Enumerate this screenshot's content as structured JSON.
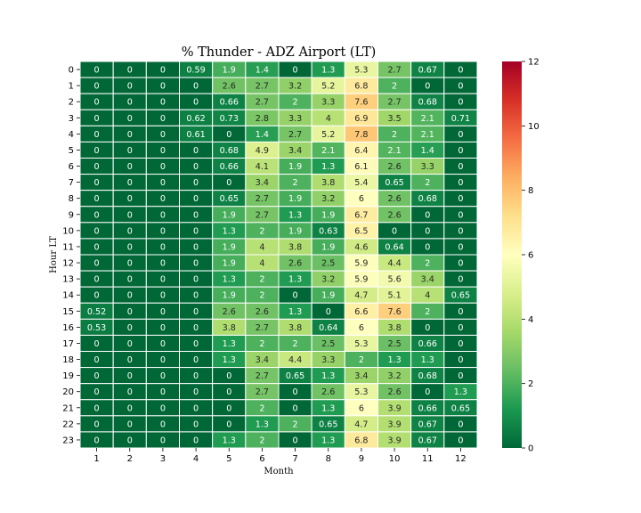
{
  "chart_data": {
    "type": "heatmap",
    "title": "% Thunder - ADZ Airport (LT)",
    "xlabel": "Month",
    "ylabel": "Hour LT",
    "x_categories": [
      "1",
      "2",
      "3",
      "4",
      "5",
      "6",
      "7",
      "8",
      "9",
      "10",
      "11",
      "12"
    ],
    "y_categories": [
      "0",
      "1",
      "2",
      "3",
      "4",
      "5",
      "6",
      "7",
      "8",
      "9",
      "10",
      "11",
      "12",
      "13",
      "14",
      "15",
      "16",
      "17",
      "18",
      "19",
      "20",
      "21",
      "22",
      "23"
    ],
    "values": [
      [
        0,
        0,
        0,
        0.59,
        1.9,
        1.4,
        0,
        1.3,
        5.3,
        2.7,
        0.67,
        0
      ],
      [
        0,
        0,
        0,
        0,
        2.6,
        2.7,
        3.2,
        5.2,
        6.8,
        2,
        0,
        0
      ],
      [
        0,
        0,
        0,
        0,
        0.66,
        2.7,
        2,
        3.3,
        7.6,
        2.7,
        0.68,
        0
      ],
      [
        0,
        0,
        0,
        0.62,
        0.73,
        2.8,
        3.3,
        4,
        6.9,
        3.5,
        2.1,
        0.71
      ],
      [
        0,
        0,
        0,
        0.61,
        0,
        1.4,
        2.7,
        5.2,
        7.8,
        2,
        2.1,
        0
      ],
      [
        0,
        0,
        0,
        0,
        0.68,
        4.9,
        3.4,
        2.1,
        6.4,
        2.1,
        1.4,
        0
      ],
      [
        0,
        0,
        0,
        0,
        0.66,
        4.1,
        1.9,
        1.3,
        6.1,
        2.6,
        3.3,
        0
      ],
      [
        0,
        0,
        0,
        0,
        0,
        3.4,
        2,
        3.8,
        5.4,
        0.65,
        2,
        0
      ],
      [
        0,
        0,
        0,
        0,
        0.65,
        2.7,
        1.9,
        3.2,
        6,
        2.6,
        0.68,
        0
      ],
      [
        0,
        0,
        0,
        0,
        1.9,
        2.7,
        1.3,
        1.9,
        6.7,
        2.6,
        0,
        0
      ],
      [
        0,
        0,
        0,
        0,
        1.3,
        2,
        1.9,
        0.63,
        6.5,
        0,
        0,
        0
      ],
      [
        0,
        0,
        0,
        0,
        1.9,
        4,
        3.8,
        1.9,
        4.6,
        0.64,
        0,
        0
      ],
      [
        0,
        0,
        0,
        0,
        1.9,
        4,
        2.6,
        2.5,
        5.9,
        4.4,
        2,
        0
      ],
      [
        0,
        0,
        0,
        0,
        1.3,
        2,
        1.3,
        3.2,
        5.9,
        5.6,
        3.4,
        0
      ],
      [
        0,
        0,
        0,
        0,
        1.9,
        2,
        0,
        1.9,
        4.7,
        5.1,
        4,
        0.65
      ],
      [
        0.52,
        0,
        0,
        0,
        2.6,
        2.6,
        1.3,
        0,
        6.6,
        7.6,
        2,
        0
      ],
      [
        0.53,
        0,
        0,
        0,
        3.8,
        2.7,
        3.8,
        0.64,
        6,
        3.8,
        0,
        0
      ],
      [
        0,
        0,
        0,
        0,
        1.3,
        2,
        2,
        2.5,
        5.3,
        2.5,
        0.66,
        0
      ],
      [
        0,
        0,
        0,
        0,
        1.3,
        3.4,
        4.4,
        3.3,
        2,
        1.3,
        1.3,
        0
      ],
      [
        0,
        0,
        0,
        0,
        0,
        2.7,
        0.65,
        1.3,
        3.4,
        3.2,
        0.68,
        0
      ],
      [
        0,
        0,
        0,
        0,
        0,
        2.7,
        0,
        2.6,
        5.3,
        2.6,
        0,
        1.3
      ],
      [
        0,
        0,
        0,
        0,
        0,
        2,
        0,
        1.3,
        6,
        3.9,
        0.66,
        0.65
      ],
      [
        0,
        0,
        0,
        0,
        0,
        1.3,
        2,
        0.65,
        4.7,
        3.9,
        0.67,
        0
      ],
      [
        0,
        0,
        0,
        0,
        1.3,
        2,
        0,
        1.3,
        6.8,
        3.9,
        0.67,
        0
      ]
    ],
    "vmin": 0,
    "vmax": 12,
    "colormap": "RdYlGn_r",
    "colorbar_ticks": [
      0,
      2,
      4,
      6,
      8,
      10,
      12
    ],
    "annotations": true,
    "cell_border_color": "#ffffff",
    "grid": false,
    "legend": "colorbar-right"
  }
}
